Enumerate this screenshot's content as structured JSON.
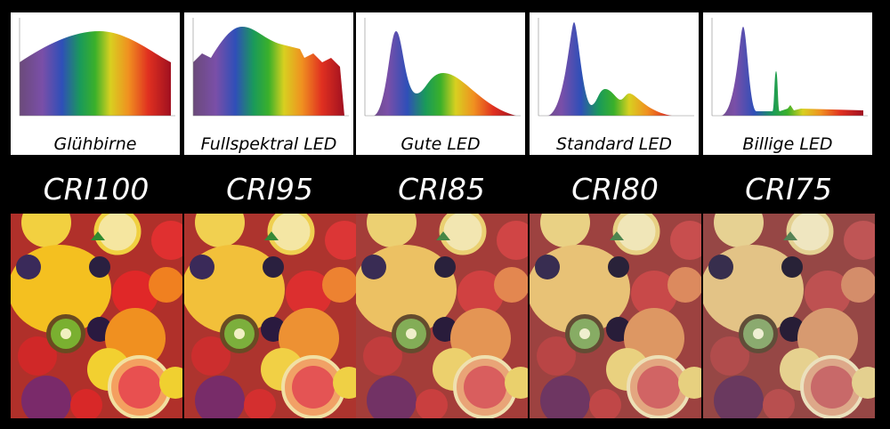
{
  "items": [
    {
      "label": "Glühbirne",
      "cri": "CRI100"
    },
    {
      "label": "Fullspektral LED",
      "cri": "CRI95"
    },
    {
      "label": "Gute LED",
      "cri": "CRI85"
    },
    {
      "label": "Standard LED",
      "cri": "CRI80"
    },
    {
      "label": "Billige LED",
      "cri": "CRI75"
    }
  ]
}
